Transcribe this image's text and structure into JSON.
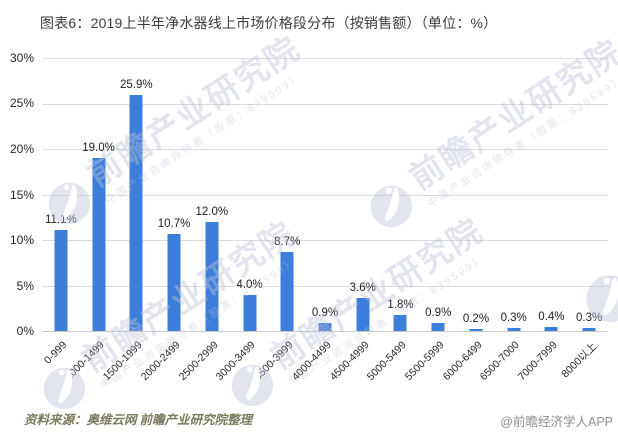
{
  "title": "图表6：2019上半年净水器线上市场价格段分布（按销售额）（单位：%）",
  "chart_data": {
    "type": "bar",
    "title": "2019上半年净水器线上市场价格段分布（按销售额）",
    "unit": "%",
    "categories": [
      "0-999",
      "1000-1499",
      "1500-1999",
      "2000-2499",
      "2500-2999",
      "3000-3499",
      "3500-3999",
      "4000-4499",
      "4500-4999",
      "5000-5499",
      "5500-5999",
      "6000-6499",
      "6500-7000",
      "7000-7999",
      "8000以上"
    ],
    "values": [
      11.1,
      19.0,
      25.9,
      10.7,
      12.0,
      4.0,
      8.7,
      0.9,
      3.6,
      1.8,
      0.9,
      0.2,
      0.3,
      0.4,
      0.3
    ],
    "value_labels": [
      "11.1%",
      "19.0%",
      "25.9%",
      "10.7%",
      "12.0%",
      "4.0%",
      "8.7%",
      "0.9%",
      "3.6%",
      "1.8%",
      "0.9%",
      "0.2%",
      "0.3%",
      "0.4%",
      "0.3%"
    ],
    "xlabel": "",
    "ylabel": "",
    "ylim": [
      0,
      30
    ],
    "ytick_labels_desc": [
      "30%",
      "25%",
      "20%",
      "15%",
      "10%",
      "5%",
      "0%"
    ],
    "grid": true,
    "legend": "none",
    "bar_color": "#3e7edb"
  },
  "watermark": {
    "main": "前瞻产业研究院",
    "sub": "中国产业咨询领导者（股票：839599）"
  },
  "footer": {
    "source": "资料来源：奥维云网 前瞻产业研究院整理",
    "credit": "@前瞻经济学人APP"
  }
}
